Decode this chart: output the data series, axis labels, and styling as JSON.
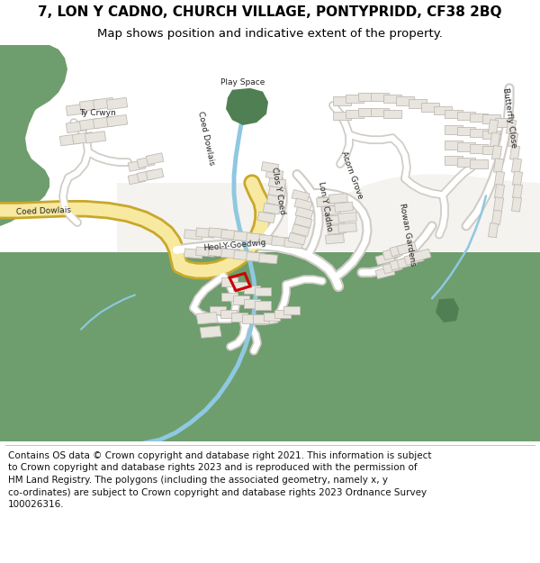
{
  "title_line1": "7, LON Y CADNO, CHURCH VILLAGE, PONTYPRIDD, CF38 2BQ",
  "title_line2": "Map shows position and indicative extent of the property.",
  "footer_lines": [
    "Contains OS data © Crown copyright and database right 2021. This information is subject",
    "to Crown copyright and database rights 2023 and is reproduced with the permission of",
    "HM Land Registry. The polygons (including the associated geometry, namely x, y",
    "co-ordinates) are subject to Crown copyright and database rights 2023 Ordnance Survey",
    "100026316."
  ],
  "bg_white": "#ffffff",
  "map_base": "#f5f3f0",
  "green": "#6e9e6e",
  "green_dark": "#4f7f52",
  "road_white": "#ffffff",
  "road_outline": "#d0ccc6",
  "yellow_fill": "#f7e9a0",
  "yellow_outline": "#c8a82a",
  "water": "#8fc8e0",
  "bldg_fill": "#e8e4de",
  "bldg_edge": "#c0bbb4",
  "red_outline": "#cc0000",
  "title_fs": 11,
  "sub_fs": 9.5,
  "footer_fs": 7.5,
  "label_fs": 6.5
}
